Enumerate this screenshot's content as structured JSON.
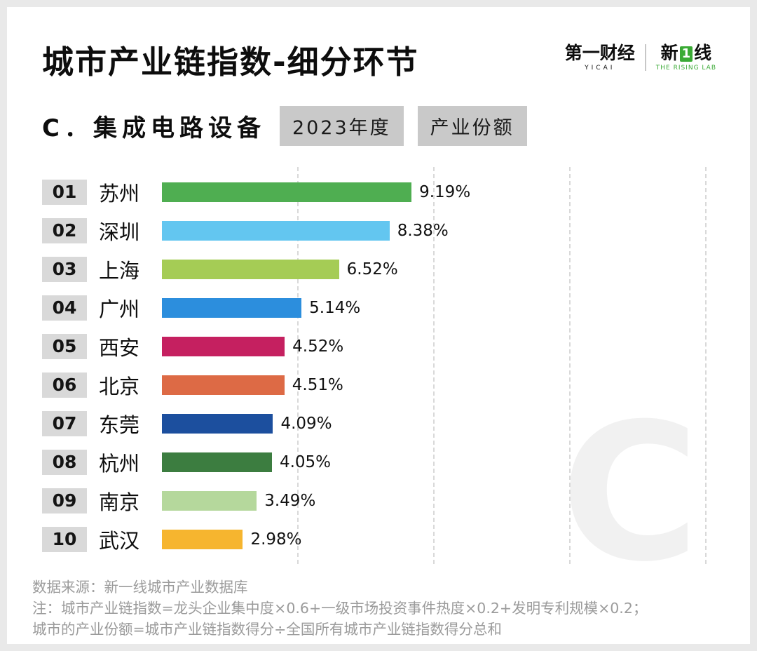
{
  "header": {
    "title": "城市产业链指数-细分环节"
  },
  "logo": {
    "yicai": "第一财经",
    "yicai_sub": "YICAI",
    "rising_prefix": "新",
    "rising_mid": "1",
    "rising_suffix": "线",
    "rising_sub": "THE RISING LAB",
    "accent_color": "#3aaa35"
  },
  "section": {
    "label": "C．集成电路设备",
    "tags": [
      "2023年度",
      "产业份额"
    ]
  },
  "chart_data": {
    "type": "bar",
    "orientation": "horizontal",
    "title": "C．集成电路设备 产业份额 2023年度",
    "unit": "%",
    "ranks": [
      "01",
      "02",
      "03",
      "04",
      "05",
      "06",
      "07",
      "08",
      "09",
      "10"
    ],
    "categories": [
      "苏州",
      "深圳",
      "上海",
      "广州",
      "西安",
      "北京",
      "东莞",
      "杭州",
      "南京",
      "武汉"
    ],
    "values": [
      9.19,
      8.38,
      6.52,
      5.14,
      4.52,
      4.51,
      4.09,
      4.05,
      3.49,
      2.98
    ],
    "value_labels": [
      "9.19%",
      "8.38%",
      "6.52%",
      "5.14%",
      "4.52%",
      "4.51%",
      "4.09%",
      "4.05%",
      "3.49%",
      "2.98%"
    ],
    "colors": [
      "#4fae51",
      "#63c6f0",
      "#a5cc55",
      "#2c8edd",
      "#c52060",
      "#dd6a45",
      "#1c4f9e",
      "#3c7d40",
      "#b5d89c",
      "#f6b52f"
    ],
    "xlim": [
      0,
      20
    ],
    "gridlines": [
      5,
      10,
      15,
      20
    ],
    "grid_style": "dashed-vertical",
    "legend": "none"
  },
  "watermark": "C",
  "footer": {
    "lines": [
      "数据来源：新一线城市产业数据库",
      "注：城市产业链指数=龙头企业集中度×0.6+一级市场投资事件热度×0.2+发明专利规模×0.2；",
      "城市的产业份额=城市产业链指数得分÷全国所有城市产业链指数得分总和"
    ]
  }
}
